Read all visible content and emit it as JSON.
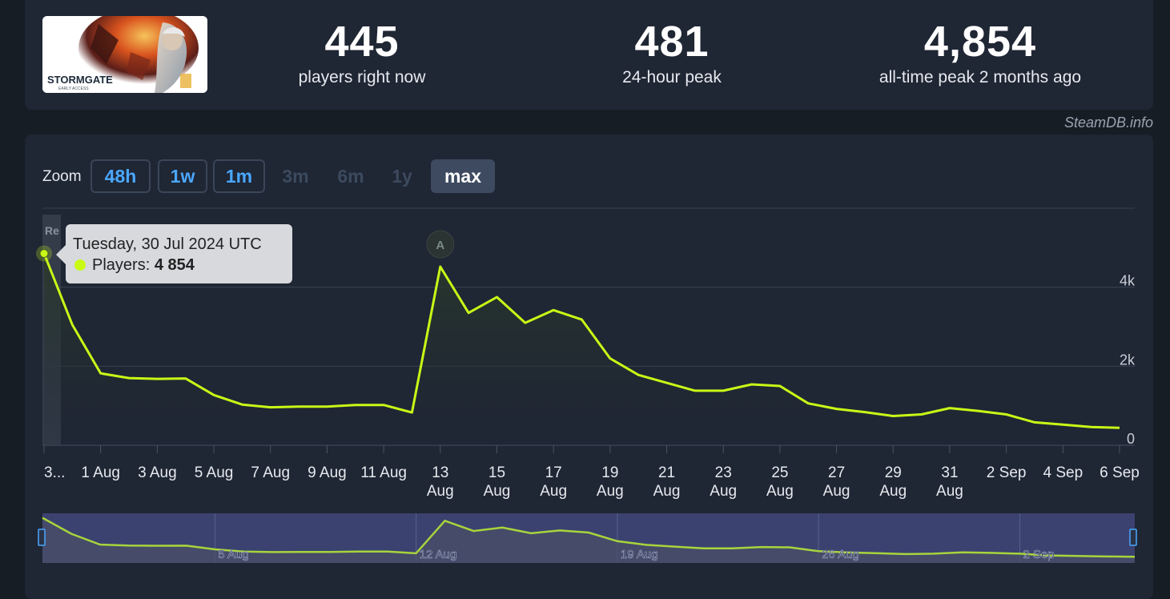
{
  "stats": {
    "current": {
      "value": "445",
      "label": "players right now"
    },
    "peak24": {
      "value": "481",
      "label": "24-hour peak"
    },
    "alltime": {
      "value": "4,854",
      "label": "all-time peak 2 months ago"
    }
  },
  "thumbnail": {
    "logo_text": "STORMGATE",
    "sub_text": "EARLY ACCESS"
  },
  "credit": "SteamDB.info",
  "zoom": {
    "label": "Zoom",
    "buttons": [
      {
        "label": "48h",
        "state": "enabled"
      },
      {
        "label": "1w",
        "state": "enabled"
      },
      {
        "label": "1m",
        "state": "enabled"
      },
      {
        "label": "3m",
        "state": "disabled"
      },
      {
        "label": "6m",
        "state": "disabled"
      },
      {
        "label": "1y",
        "state": "disabled"
      },
      {
        "label": "max",
        "state": "active"
      }
    ]
  },
  "tooltip": {
    "date": "Tuesday, 30 Jul 2024 UTC",
    "series_label": "Players:",
    "value": "4 854"
  },
  "colors": {
    "line": "#c8fa16",
    "background": "#1f2634",
    "navigator_fill": "#3b4270",
    "accent": "#4aa8ff"
  },
  "annotation": {
    "flag": "A",
    "partial_label": "Re"
  },
  "chart_data": {
    "type": "line",
    "series": [
      {
        "name": "Players",
        "x": [
          "2024-07-30",
          "2024-07-31",
          "2024-08-01",
          "2024-08-02",
          "2024-08-03",
          "2024-08-04",
          "2024-08-05",
          "2024-08-06",
          "2024-08-07",
          "2024-08-08",
          "2024-08-09",
          "2024-08-10",
          "2024-08-11",
          "2024-08-12",
          "2024-08-13",
          "2024-08-14",
          "2024-08-15",
          "2024-08-16",
          "2024-08-17",
          "2024-08-18",
          "2024-08-19",
          "2024-08-20",
          "2024-08-21",
          "2024-08-22",
          "2024-08-23",
          "2024-08-24",
          "2024-08-25",
          "2024-08-26",
          "2024-08-27",
          "2024-08-28",
          "2024-08-29",
          "2024-08-30",
          "2024-08-31",
          "2024-09-01",
          "2024-09-02",
          "2024-09-03",
          "2024-09-04",
          "2024-09-05",
          "2024-09-06"
        ],
        "values": [
          4854,
          3050,
          1820,
          1700,
          1680,
          1690,
          1270,
          1030,
          960,
          980,
          980,
          1020,
          1020,
          830,
          4520,
          3350,
          3750,
          3100,
          3420,
          3180,
          2200,
          1780,
          1580,
          1380,
          1380,
          1540,
          1500,
          1060,
          920,
          840,
          740,
          780,
          940,
          870,
          780,
          580,
          520,
          460,
          440
        ]
      }
    ],
    "ylim": [
      0,
      6000
    ],
    "yticks": [
      {
        "v": 0,
        "label": "0"
      },
      {
        "v": 2000,
        "label": "2k"
      },
      {
        "v": 4000,
        "label": "4k"
      }
    ],
    "xticks": [
      {
        "x": "2024-07-30",
        "l1": "3...",
        "l2": ""
      },
      {
        "x": "2024-08-01",
        "l1": "1 Aug",
        "l2": ""
      },
      {
        "x": "2024-08-03",
        "l1": "3 Aug",
        "l2": ""
      },
      {
        "x": "2024-08-05",
        "l1": "5 Aug",
        "l2": ""
      },
      {
        "x": "2024-08-07",
        "l1": "7 Aug",
        "l2": ""
      },
      {
        "x": "2024-08-09",
        "l1": "9 Aug",
        "l2": ""
      },
      {
        "x": "2024-08-11",
        "l1": "11 Aug",
        "l2": ""
      },
      {
        "x": "2024-08-13",
        "l1": "13",
        "l2": "Aug"
      },
      {
        "x": "2024-08-15",
        "l1": "15",
        "l2": "Aug"
      },
      {
        "x": "2024-08-17",
        "l1": "17",
        "l2": "Aug"
      },
      {
        "x": "2024-08-19",
        "l1": "19",
        "l2": "Aug"
      },
      {
        "x": "2024-08-21",
        "l1": "21",
        "l2": "Aug"
      },
      {
        "x": "2024-08-23",
        "l1": "23",
        "l2": "Aug"
      },
      {
        "x": "2024-08-25",
        "l1": "25",
        "l2": "Aug"
      },
      {
        "x": "2024-08-27",
        "l1": "27",
        "l2": "Aug"
      },
      {
        "x": "2024-08-29",
        "l1": "29",
        "l2": "Aug"
      },
      {
        "x": "2024-08-31",
        "l1": "31",
        "l2": "Aug"
      },
      {
        "x": "2024-09-02",
        "l1": "2 Sep",
        "l2": ""
      },
      {
        "x": "2024-09-04",
        "l1": "4 Sep",
        "l2": ""
      },
      {
        "x": "2024-09-06",
        "l1": "6 Sep",
        "l2": ""
      }
    ],
    "annotations": [
      {
        "x": "2024-08-13",
        "label": "A"
      }
    ],
    "navigator": {
      "labels": [
        {
          "x": "2024-08-05",
          "label": "5 Aug"
        },
        {
          "x": "2024-08-12",
          "label": "12 Aug"
        },
        {
          "x": "2024-08-19",
          "label": "19 Aug"
        },
        {
          "x": "2024-08-26",
          "label": "26 Aug"
        },
        {
          "x": "2024-09-02",
          "label": "2 Sep"
        }
      ]
    },
    "grid": true,
    "legend": "none"
  }
}
